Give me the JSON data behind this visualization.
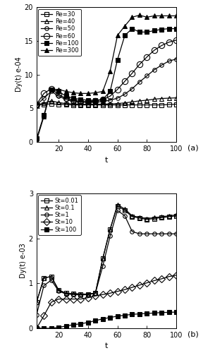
{
  "panel_a": {
    "ylabel": "Dy(t) e-04",
    "xlabel": "t",
    "label": "(a)",
    "ylim": [
      0,
      20
    ],
    "xlim": [
      5,
      100
    ],
    "xticks": [
      20,
      40,
      60,
      80,
      100
    ],
    "yticks": [
      0,
      5,
      10,
      15,
      20
    ],
    "series": [
      {
        "label": "Re=30",
        "marker": "s",
        "fillstyle": "none",
        "color": "black",
        "markersize": 4,
        "t": [
          5,
          10,
          15,
          20,
          25,
          30,
          35,
          40,
          45,
          50,
          55,
          60,
          65,
          70,
          75,
          80,
          85,
          90,
          95,
          100
        ],
        "y": [
          5.5,
          5.6,
          5.65,
          5.6,
          5.55,
          5.5,
          5.5,
          5.5,
          5.5,
          5.5,
          5.5,
          5.5,
          5.5,
          5.5,
          5.5,
          5.5,
          5.5,
          5.5,
          5.55,
          5.6
        ]
      },
      {
        "label": "Re=40",
        "marker": "^",
        "fillstyle": "none",
        "color": "black",
        "markersize": 4,
        "t": [
          5,
          10,
          15,
          20,
          25,
          30,
          35,
          40,
          45,
          50,
          55,
          60,
          65,
          70,
          75,
          80,
          85,
          90,
          95,
          100
        ],
        "y": [
          5.5,
          5.75,
          6.1,
          5.85,
          5.7,
          5.65,
          5.6,
          5.6,
          5.6,
          5.62,
          5.65,
          5.7,
          5.8,
          5.95,
          6.1,
          6.2,
          6.35,
          6.45,
          6.5,
          6.55
        ]
      },
      {
        "label": "Re=50",
        "marker": "o",
        "fillstyle": "none",
        "color": "black",
        "markersize": 4,
        "t": [
          5,
          10,
          15,
          20,
          25,
          30,
          35,
          40,
          45,
          50,
          55,
          60,
          65,
          70,
          75,
          80,
          85,
          90,
          95,
          100
        ],
        "y": [
          5.5,
          6.5,
          7.5,
          6.8,
          6.3,
          6.0,
          5.9,
          5.9,
          5.9,
          6.0,
          6.2,
          6.5,
          7.1,
          7.9,
          8.9,
          9.8,
          10.7,
          11.4,
          12.0,
          12.3
        ]
      },
      {
        "label": "Re=60",
        "marker": "o",
        "fillstyle": "none",
        "color": "black",
        "markersize": 6,
        "t": [
          5,
          10,
          15,
          20,
          25,
          30,
          35,
          40,
          45,
          50,
          55,
          60,
          65,
          70,
          75,
          80,
          85,
          90,
          95,
          100
        ],
        "y": [
          5.6,
          7.2,
          7.9,
          7.0,
          6.5,
          6.2,
          6.0,
          6.0,
          6.1,
          6.3,
          6.8,
          7.8,
          9.0,
          10.2,
          11.5,
          12.6,
          13.6,
          14.3,
          14.8,
          15.1
        ]
      },
      {
        "label": "Re=100",
        "marker": "s",
        "fillstyle": "full",
        "color": "black",
        "markersize": 4,
        "t": [
          5,
          10,
          15,
          20,
          25,
          30,
          35,
          40,
          45,
          50,
          55,
          60,
          65,
          70,
          75,
          80,
          85,
          90,
          95,
          100
        ],
        "y": [
          0.5,
          4.0,
          7.8,
          7.5,
          6.8,
          6.5,
          6.3,
          6.2,
          6.2,
          6.3,
          7.5,
          12.2,
          15.8,
          16.8,
          16.3,
          16.3,
          16.5,
          16.7,
          16.8,
          16.8
        ]
      },
      {
        "label": "Re=300",
        "marker": "^",
        "fillstyle": "full",
        "color": "black",
        "markersize": 4,
        "t": [
          5,
          10,
          15,
          20,
          25,
          30,
          35,
          40,
          45,
          50,
          55,
          60,
          65,
          70,
          75,
          80,
          85,
          90,
          95,
          100
        ],
        "y": [
          0.2,
          3.8,
          7.8,
          7.8,
          7.5,
          7.3,
          7.2,
          7.2,
          7.3,
          7.5,
          10.5,
          15.8,
          17.2,
          18.5,
          18.8,
          18.5,
          18.7,
          18.7,
          18.7,
          18.7
        ]
      }
    ]
  },
  "panel_b": {
    "ylabel": "Dy(t) e-03",
    "xlabel": "t",
    "label": "(b)",
    "ylim": [
      0,
      3
    ],
    "xlim": [
      5,
      100
    ],
    "xticks": [
      20,
      40,
      60,
      80,
      100
    ],
    "yticks": [
      0,
      1,
      2,
      3
    ],
    "series": [
      {
        "label": "St=0.01",
        "marker": "s",
        "fillstyle": "none",
        "color": "black",
        "markersize": 4,
        "t": [
          5,
          10,
          15,
          20,
          25,
          30,
          35,
          40,
          45,
          50,
          55,
          60,
          65,
          70,
          75,
          80,
          85,
          90,
          95,
          100
        ],
        "y": [
          0.58,
          1.12,
          1.15,
          0.85,
          0.78,
          0.77,
          0.76,
          0.76,
          0.78,
          1.55,
          2.2,
          2.72,
          2.62,
          2.48,
          2.45,
          2.42,
          2.44,
          2.46,
          2.48,
          2.5
        ]
      },
      {
        "label": "St=0.1",
        "marker": "^",
        "fillstyle": "none",
        "color": "black",
        "markersize": 4,
        "t": [
          5,
          10,
          15,
          20,
          25,
          30,
          35,
          40,
          45,
          50,
          55,
          60,
          65,
          70,
          75,
          80,
          85,
          90,
          95,
          100
        ],
        "y": [
          0.58,
          1.12,
          1.15,
          0.85,
          0.78,
          0.77,
          0.76,
          0.76,
          0.78,
          1.55,
          2.2,
          2.75,
          2.65,
          2.5,
          2.47,
          2.44,
          2.46,
          2.48,
          2.5,
          2.52
        ]
      },
      {
        "label": "St=1",
        "marker": "o",
        "fillstyle": "none",
        "color": "black",
        "markersize": 4,
        "t": [
          5,
          10,
          15,
          20,
          25,
          30,
          35,
          40,
          45,
          50,
          55,
          60,
          65,
          70,
          75,
          80,
          85,
          90,
          95,
          100
        ],
        "y": [
          0.3,
          0.95,
          1.07,
          0.83,
          0.76,
          0.75,
          0.74,
          0.75,
          0.78,
          1.38,
          2.05,
          2.62,
          2.5,
          2.15,
          2.1,
          2.1,
          2.1,
          2.1,
          2.1,
          2.1
        ]
      },
      {
        "label": "St=10",
        "marker": "D",
        "fillstyle": "none",
        "color": "black",
        "markersize": 5,
        "t": [
          5,
          10,
          15,
          20,
          25,
          30,
          35,
          40,
          45,
          50,
          55,
          60,
          65,
          70,
          75,
          80,
          85,
          90,
          95,
          100
        ],
        "y": [
          0.0,
          0.28,
          0.58,
          0.65,
          0.65,
          0.65,
          0.65,
          0.68,
          0.72,
          0.75,
          0.78,
          0.82,
          0.86,
          0.91,
          0.96,
          1.01,
          1.06,
          1.1,
          1.15,
          1.18
        ]
      },
      {
        "label": "St=100",
        "marker": "s",
        "fillstyle": "full",
        "color": "black",
        "markersize": 4,
        "t": [
          5,
          10,
          15,
          20,
          25,
          30,
          35,
          40,
          45,
          50,
          55,
          60,
          65,
          70,
          75,
          80,
          85,
          90,
          95,
          100
        ],
        "y": [
          0.0,
          0.0,
          0.0,
          0.02,
          0.05,
          0.08,
          0.1,
          0.13,
          0.17,
          0.21,
          0.24,
          0.27,
          0.29,
          0.31,
          0.32,
          0.33,
          0.34,
          0.35,
          0.355,
          0.36
        ]
      }
    ]
  }
}
